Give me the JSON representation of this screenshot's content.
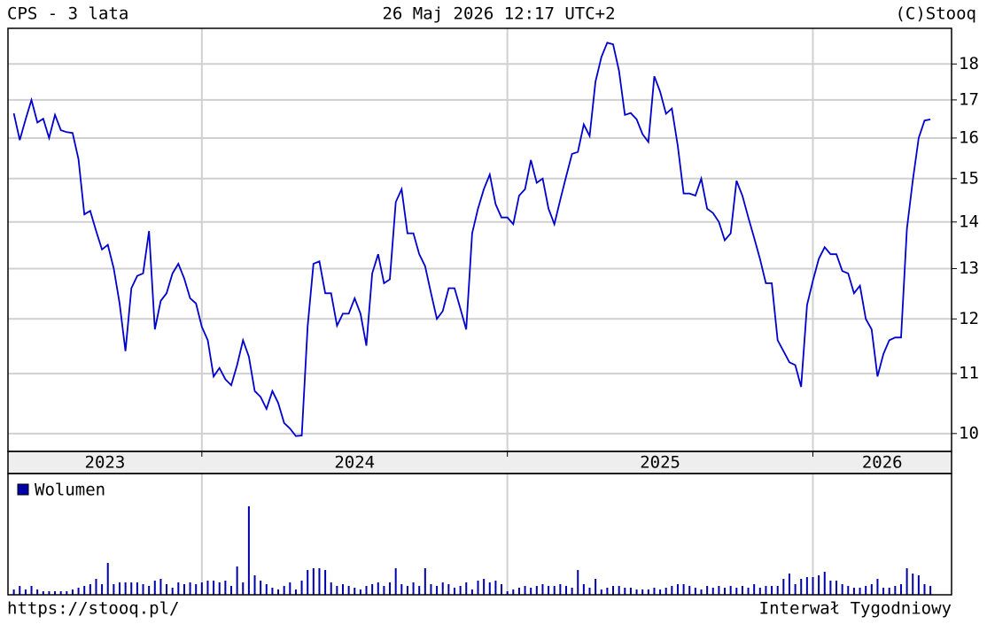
{
  "header": {
    "left": "CPS - 3 lata",
    "center": "26 Maj 2026 12:17 UTC+2",
    "right": "(C)Stooq"
  },
  "footer": {
    "left": "https://stooq.pl/",
    "right": "Interwał Tygodniowy"
  },
  "chart_data": [
    {
      "type": "line",
      "log_scale": true,
      "grid": true,
      "color": "#0000cc",
      "values": [
        16.64,
        15.95,
        16.48,
        17.0,
        16.4,
        16.5,
        16.0,
        16.6,
        16.2,
        16.15,
        16.13,
        15.47,
        14.17,
        14.25,
        13.8,
        13.4,
        13.5,
        13.0,
        12.3,
        11.4,
        12.6,
        12.85,
        12.9,
        13.8,
        11.8,
        12.35,
        12.5,
        12.9,
        13.1,
        12.8,
        12.4,
        12.3,
        11.85,
        11.6,
        10.95,
        11.1,
        10.9,
        10.8,
        11.15,
        11.6,
        11.3,
        10.7,
        10.6,
        10.4,
        10.7,
        10.5,
        10.17,
        10.08,
        9.96,
        9.97,
        11.85,
        13.1,
        13.15,
        12.5,
        12.5,
        11.87,
        12.1,
        12.1,
        12.4,
        12.1,
        11.5,
        12.9,
        13.3,
        12.7,
        12.78,
        14.45,
        14.75,
        13.75,
        13.75,
        13.3,
        13.05,
        12.5,
        12.0,
        12.15,
        12.6,
        12.6,
        12.2,
        11.8,
        13.75,
        14.3,
        14.75,
        15.1,
        14.4,
        14.1,
        14.1,
        13.95,
        14.6,
        14.75,
        15.45,
        14.9,
        15.0,
        14.3,
        13.95,
        14.5,
        15.05,
        15.6,
        15.65,
        16.35,
        16.05,
        17.5,
        18.2,
        18.62,
        18.57,
        17.8,
        16.6,
        16.65,
        16.48,
        16.1,
        15.9,
        17.65,
        17.22,
        16.63,
        16.77,
        15.8,
        14.65,
        14.65,
        14.6,
        15.0,
        14.3,
        14.2,
        14.0,
        13.6,
        13.75,
        14.95,
        14.6,
        14.1,
        13.65,
        13.2,
        12.7,
        12.7,
        11.6,
        11.4,
        11.2,
        11.15,
        10.77,
        12.27,
        12.75,
        13.2,
        13.45,
        13.3,
        13.3,
        12.95,
        12.9,
        12.5,
        12.65,
        12.0,
        11.8,
        10.95,
        11.35,
        11.6,
        11.65,
        11.65,
        13.85,
        14.95,
        16.0,
        16.45,
        16.48
      ],
      "xlim": [
        -1,
        159.6
      ],
      "xticks": [
        32,
        84,
        136
      ],
      "year_labels": [
        "2023",
        "2024",
        "2025",
        "2026"
      ],
      "ylim": [
        9.72,
        19.05
      ],
      "yticks": [
        10,
        11,
        12,
        13,
        14,
        15,
        16,
        17,
        18
      ]
    },
    {
      "type": "bar",
      "legend": "Wolumen",
      "color": "#0000aa",
      "ylim": [
        0,
        137
      ],
      "values": [
        6,
        10,
        6,
        10,
        6,
        4,
        4,
        4,
        4,
        4,
        6,
        8,
        10,
        12,
        18,
        12,
        36,
        12,
        14,
        14,
        14,
        14,
        12,
        10,
        16,
        18,
        12,
        8,
        14,
        12,
        14,
        12,
        14,
        16,
        16,
        14,
        16,
        10,
        32,
        14,
        100,
        22,
        16,
        12,
        8,
        6,
        10,
        14,
        6,
        16,
        28,
        30,
        30,
        28,
        14,
        10,
        12,
        10,
        8,
        6,
        10,
        12,
        14,
        10,
        14,
        30,
        12,
        10,
        14,
        10,
        30,
        12,
        10,
        14,
        12,
        8,
        10,
        14,
        6,
        16,
        18,
        14,
        16,
        12,
        4,
        6,
        8,
        10,
        8,
        10,
        12,
        10,
        10,
        12,
        10,
        8,
        28,
        12,
        8,
        18,
        6,
        8,
        10,
        10,
        8,
        8,
        6,
        6,
        6,
        8,
        6,
        8,
        10,
        12,
        12,
        10,
        8,
        6,
        10,
        8,
        10,
        8,
        10,
        8,
        10,
        8,
        12,
        8,
        10,
        10,
        10,
        18,
        24,
        12,
        18,
        20,
        20,
        22,
        26,
        16,
        16,
        12,
        10,
        8,
        8,
        10,
        12,
        18,
        8,
        8,
        10,
        12,
        30,
        24,
        22,
        12,
        10
      ]
    }
  ]
}
